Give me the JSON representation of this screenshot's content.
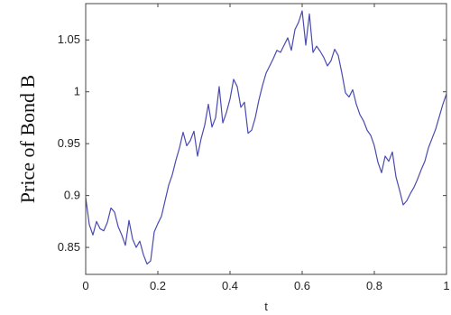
{
  "chart_data": {
    "type": "line",
    "title": "",
    "xlabel": "t",
    "ylabel": "Price of Bond B",
    "xlim": [
      0,
      1
    ],
    "ylim": [
      0.824,
      1.085
    ],
    "grid": false,
    "xticks": [
      {
        "value": 0,
        "label": "0"
      },
      {
        "value": 0.2,
        "label": "0.2"
      },
      {
        "value": 0.4,
        "label": "0.4"
      },
      {
        "value": 0.6,
        "label": "0.6"
      },
      {
        "value": 0.8,
        "label": "0.8"
      },
      {
        "value": 1,
        "label": "1"
      }
    ],
    "yticks": [
      {
        "value": 0.85,
        "label": "0.85"
      },
      {
        "value": 0.9,
        "label": "0.9"
      },
      {
        "value": 0.95,
        "label": "0.95"
      },
      {
        "value": 1,
        "label": "1"
      },
      {
        "value": 1.05,
        "label": "1.05"
      }
    ],
    "series": [
      {
        "color": "#4a4ab0",
        "x": [
          0,
          0.01,
          0.02,
          0.03,
          0.04,
          0.05,
          0.06,
          0.07,
          0.08,
          0.09,
          0.1,
          0.11,
          0.12,
          0.13,
          0.14,
          0.15,
          0.16,
          0.17,
          0.18,
          0.19,
          0.2,
          0.21,
          0.22,
          0.23,
          0.24,
          0.25,
          0.26,
          0.27,
          0.28,
          0.29,
          0.3,
          0.31,
          0.32,
          0.33,
          0.34,
          0.35,
          0.36,
          0.37,
          0.38,
          0.39,
          0.4,
          0.41,
          0.42,
          0.43,
          0.44,
          0.45,
          0.46,
          0.47,
          0.48,
          0.49,
          0.5,
          0.51,
          0.52,
          0.53,
          0.54,
          0.55,
          0.56,
          0.57,
          0.58,
          0.59,
          0.6,
          0.61,
          0.62,
          0.63,
          0.64,
          0.65,
          0.66,
          0.67,
          0.68,
          0.69,
          0.7,
          0.71,
          0.72,
          0.73,
          0.74,
          0.75,
          0.76,
          0.77,
          0.78,
          0.79,
          0.8,
          0.81,
          0.82,
          0.83,
          0.84,
          0.85,
          0.86,
          0.87,
          0.88,
          0.89,
          0.9,
          0.91,
          0.92,
          0.93,
          0.94,
          0.95,
          0.96,
          0.97,
          0.98,
          0.99,
          1
        ],
        "y": [
          0.898,
          0.872,
          0.862,
          0.875,
          0.868,
          0.866,
          0.874,
          0.888,
          0.884,
          0.87,
          0.862,
          0.852,
          0.876,
          0.858,
          0.85,
          0.856,
          0.843,
          0.834,
          0.837,
          0.865,
          0.873,
          0.88,
          0.895,
          0.91,
          0.92,
          0.934,
          0.946,
          0.961,
          0.948,
          0.953,
          0.962,
          0.938,
          0.955,
          0.968,
          0.988,
          0.966,
          0.975,
          1.005,
          0.97,
          0.98,
          0.993,
          1.012,
          1.005,
          0.985,
          0.99,
          0.96,
          0.963,
          0.975,
          0.992,
          1.006,
          1.018,
          1.025,
          1.032,
          1.04,
          1.038,
          1.045,
          1.052,
          1.04,
          1.06,
          1.067,
          1.078,
          1.045,
          1.075,
          1.038,
          1.044,
          1.039,
          1.033,
          1.025,
          1.03,
          1.041,
          1.035,
          1.018,
          0.999,
          0.995,
          1.002,
          0.988,
          0.978,
          0.972,
          0.963,
          0.958,
          0.948,
          0.932,
          0.922,
          0.938,
          0.933,
          0.942,
          0.918,
          0.905,
          0.891,
          0.895,
          0.902,
          0.908,
          0.916,
          0.925,
          0.933,
          0.946,
          0.955,
          0.964,
          0.976,
          0.988,
          0.998
        ]
      }
    ]
  }
}
